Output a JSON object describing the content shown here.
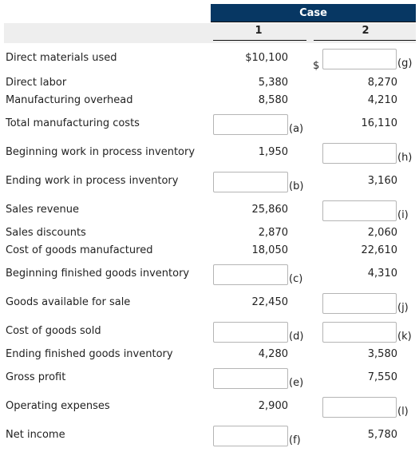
{
  "header": {
    "case_label": "Case",
    "col1": "1",
    "col2": "2"
  },
  "rows": [
    {
      "label": "Direct materials used",
      "c1": "$10,100",
      "c2_prefix": "$",
      "c2_tag": "(g)"
    },
    {
      "label": "Direct labor",
      "c1": "5,380",
      "c2": "8,270"
    },
    {
      "label": "Manufacturing overhead",
      "c1": "8,580",
      "c2": "4,210"
    },
    {
      "label": "Total manufacturing costs",
      "c1_tag": "(a)",
      "c2": "16,110"
    },
    {
      "label": "Beginning work in process inventory",
      "c1": "1,950",
      "c2_tag": "(h)"
    },
    {
      "label": "Ending work in process inventory",
      "c1_tag": "(b)",
      "c2": "3,160"
    },
    {
      "label": "Sales revenue",
      "c1": "25,860",
      "c2_tag": "(i)"
    },
    {
      "label": "Sales discounts",
      "c1": "2,870",
      "c2": "2,060"
    },
    {
      "label": "Cost of goods manufactured",
      "c1": "18,050",
      "c2": "22,610"
    },
    {
      "label": "Beginning finished goods inventory",
      "c1_tag": "(c)",
      "c2": "4,310"
    },
    {
      "label": "Goods available for sale",
      "c1": "22,450",
      "c2_tag": "(j)"
    },
    {
      "label": "Cost of goods sold",
      "c1_tag": "(d)",
      "c2_tag": "(k)"
    },
    {
      "label": "Ending finished goods inventory",
      "c1": "4,280",
      "c2": "3,580"
    },
    {
      "label": "Gross profit",
      "c1_tag": "(e)",
      "c2": "7,550"
    },
    {
      "label": "Operating expenses",
      "c1": "2,900",
      "c2_tag": "(l)"
    },
    {
      "label": "Net income",
      "c1_tag": "(f)",
      "c2": "5,780"
    }
  ]
}
